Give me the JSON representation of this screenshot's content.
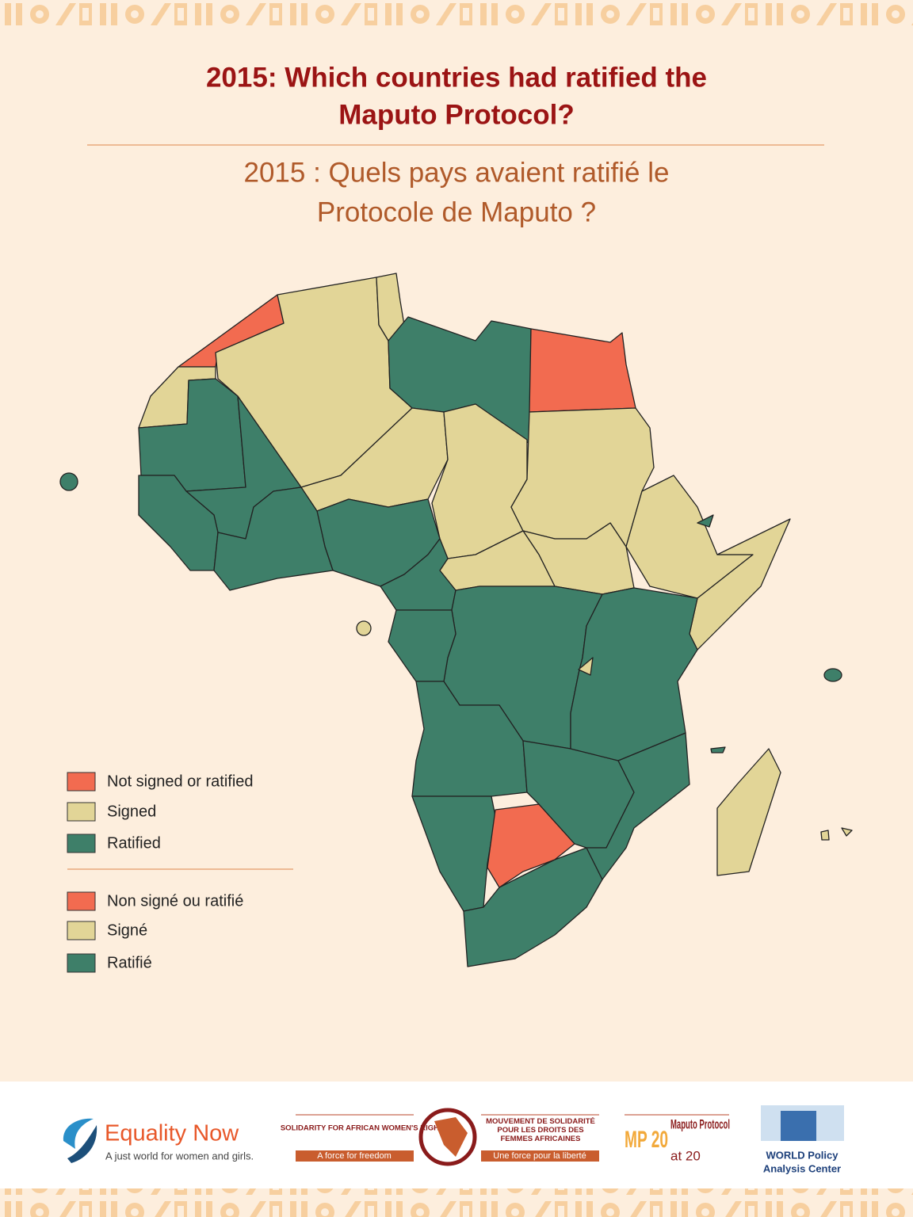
{
  "title_en": [
    "2015: Which countries had ratified the",
    "Maputo Protocol?"
  ],
  "title_fr": [
    "2015 : Quels pays avaient ratifié le",
    "Protocole de Maputo ?"
  ],
  "legend_en": [
    {
      "label": "Not signed or ratified",
      "color": "#f26b50"
    },
    {
      "label": "Signed",
      "color": "#e2d597"
    },
    {
      "label": "Ratified",
      "color": "#3e7f69"
    }
  ],
  "legend_fr": [
    {
      "label": "Non signé ou ratifié",
      "color": "#f26b50"
    },
    {
      "label": "Signé",
      "color": "#e2d597"
    },
    {
      "label": "Ratifié",
      "color": "#3e7f69"
    }
  ],
  "footer": {
    "equality_now": {
      "name": "Equality Now",
      "tagline": "A just world for women and girls."
    },
    "solidarity_en": {
      "name": "SOLIDARITY FOR AFRICAN WOMEN'S RIGHTS",
      "tagline": "A force for freedom"
    },
    "solidarity_fr": {
      "name": "MOUVEMENT DE SOLIDARITÉ POUR LES DROITS DES FEMMES AFRICAINES",
      "tagline": "Une force pour la liberté"
    },
    "mp20": {
      "mark": "MP 20",
      "name": "Maputo Protocol",
      "sub": "at 20"
    },
    "world": {
      "name": "WORLD Policy",
      "sub": "Analysis Center"
    }
  }
}
